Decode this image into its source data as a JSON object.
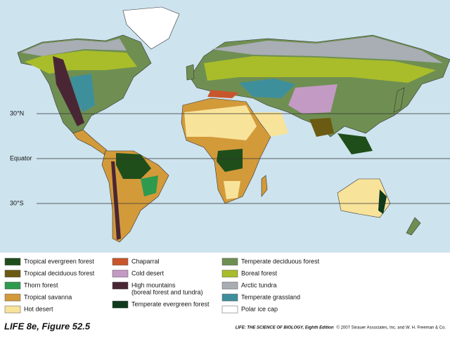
{
  "map": {
    "latitude_lines": [
      {
        "label": "30°N"
      },
      {
        "label": "Equator"
      },
      {
        "label": "30°S"
      }
    ]
  },
  "legend": [
    {
      "label": "Tropical evergreen forest",
      "color": "#1f4e1a"
    },
    {
      "label": "Tropical deciduous forest",
      "color": "#6b5a12"
    },
    {
      "label": "Thorn forest",
      "color": "#2e9a4e"
    },
    {
      "label": "Tropical savanna",
      "color": "#d39a3a"
    },
    {
      "label": "Hot desert",
      "color": "#f8e39a"
    },
    {
      "label": "Chaparral",
      "color": "#c8562c"
    },
    {
      "label": "Cold desert",
      "color": "#c39ac4"
    },
    {
      "label": "High mountains",
      "sublabel": "(boreal forest and tundra)",
      "color": "#4a2634"
    },
    {
      "label": "Temperate evergreen forest",
      "color": "#0f3a1c"
    },
    {
      "label": "Temperate deciduous forest",
      "color": "#6f8f52"
    },
    {
      "label": "Boreal forest",
      "color": "#a9bd2a"
    },
    {
      "label": "Arctic tundra",
      "color": "#a9adb4"
    },
    {
      "label": "Temperate grassland",
      "color": "#3e8f9c"
    },
    {
      "label": "Polar ice cap",
      "color": "#ffffff"
    }
  ],
  "caption": "LIFE 8e, Figure 52.5",
  "credit": {
    "book": "LIFE: THE SCIENCE OF BIOLOGY, Eighth Edition",
    "copyright": "© 2007 Sinauer Associates, Inc. and W. H. Freeman & Co."
  }
}
